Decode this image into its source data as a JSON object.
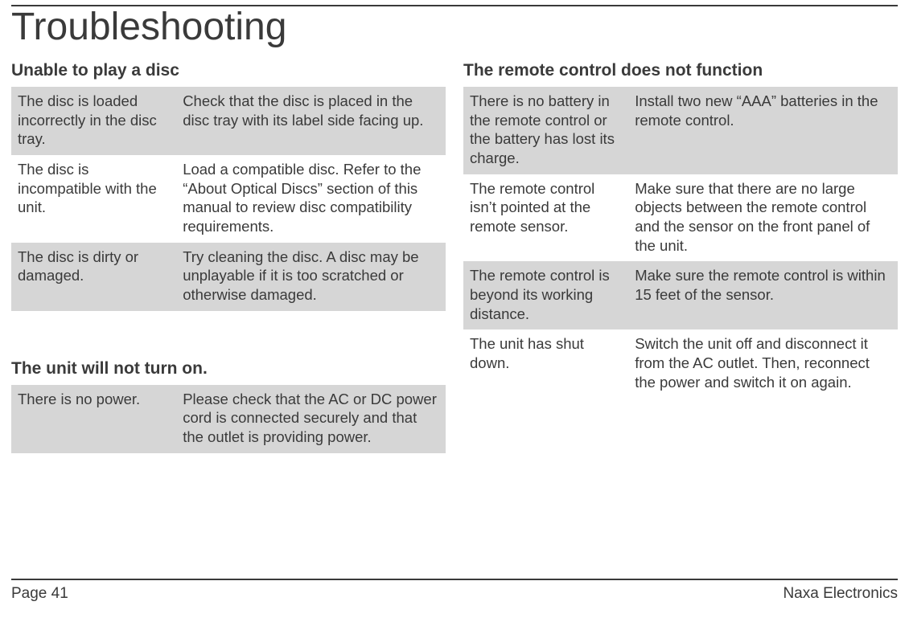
{
  "title": "Troubleshooting",
  "colors": {
    "text": "#3a3a3a",
    "shade": "#d6d6d6",
    "rule": "#3a3a3a",
    "background": "#ffffff"
  },
  "sections": {
    "disc": {
      "heading": "Unable to play a disc",
      "rows": [
        {
          "problem": "The disc is loaded incorrectly in the disc tray.",
          "solution": "Check that the disc is placed in the disc tray with its label side facing up."
        },
        {
          "problem": "The disc is incompatible with the unit.",
          "solution": "Load a compatible disc. Refer to the “About Optical Discs” section of this manual to review disc compatibility requirements."
        },
        {
          "problem": "The disc is dirty or damaged.",
          "solution": "Try cleaning the disc. A disc may be unplayable if it is too scratched or otherwise damaged."
        }
      ]
    },
    "power": {
      "heading": "The unit will not turn on.",
      "rows": [
        {
          "problem": "There is no power.",
          "solution": "Please check that the AC or DC power cord is connected securely and that the outlet is providing power."
        }
      ]
    },
    "remote": {
      "heading": "The remote control does not function",
      "rows": [
        {
          "problem": "There is no battery in the remote control or the battery has lost its charge.",
          "solution": "Install two new “AAA” batteries in the remote control."
        },
        {
          "problem": "The remote control isn’t pointed at the remote sensor.",
          "solution": "Make sure that there are no large objects between the remote control and the sensor on the front panel of the unit."
        },
        {
          "problem": "The remote control is beyond its working distance.",
          "solution": "Make sure the remote control is within 15 feet of the sensor."
        },
        {
          "problem": "The unit has shut down.",
          "solution": "Switch the unit off and disconnect it from the AC outlet. Then, reconnect the power and switch it on again."
        }
      ]
    }
  },
  "footer": {
    "page_label": "Page ",
    "page_number": "41",
    "brand": "Naxa Electronics"
  }
}
